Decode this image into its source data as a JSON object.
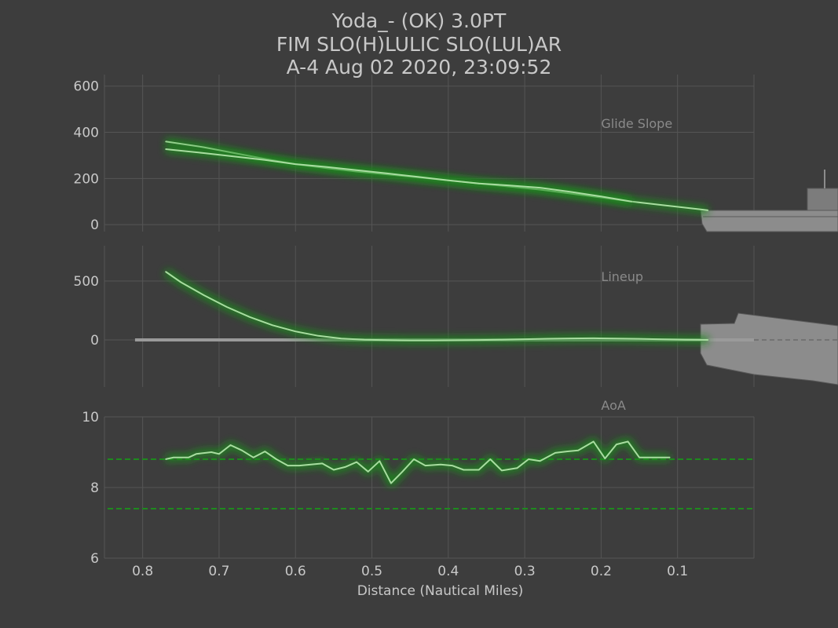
{
  "title_lines": [
    "Yoda_- (OK) 3.0PT",
    "FIM  SLO(H)LULIC SLO(LUL)AR",
    "A-4 Aug 02 2020, 23:09:52"
  ],
  "colors": {
    "background": "#3d3d3d",
    "grid": "#555555",
    "axis_text": "#c8c8c8",
    "panel_label": "#8a8a8a",
    "line": "#a8dca0",
    "glow": "#1f8a1f",
    "aoa_bounds": "#1e8a1e",
    "centerline": "#9a9a9a",
    "ship": "#8c8c8c"
  },
  "chart_data": [
    {
      "type": "line",
      "panel": "Glide Slope",
      "label": "Glide Slope",
      "x_axis": "reversed",
      "xlim": [
        0.85,
        0.0
      ],
      "ylim": [
        -30,
        650
      ],
      "yticks": [
        0,
        200,
        400,
        600
      ],
      "grid": true,
      "series": [
        {
          "x": [
            0.77,
            0.72,
            0.68,
            0.64,
            0.6,
            0.56,
            0.52,
            0.48,
            0.44,
            0.4,
            0.36,
            0.32,
            0.28,
            0.24,
            0.2,
            0.16,
            0.12,
            0.08,
            0.06
          ],
          "y": [
            360,
            335,
            310,
            285,
            262,
            245,
            230,
            218,
            205,
            192,
            178,
            165,
            152,
            135,
            118,
            100,
            85,
            70,
            62
          ]
        },
        {
          "x": [
            0.77,
            0.72,
            0.68,
            0.64,
            0.6,
            0.56,
            0.52,
            0.48,
            0.44,
            0.4,
            0.36,
            0.32,
            0.28,
            0.24,
            0.2,
            0.16
          ],
          "y": [
            327,
            310,
            295,
            280,
            262,
            250,
            236,
            222,
            207,
            192,
            178,
            170,
            160,
            142,
            122,
            100
          ]
        }
      ],
      "decoration": "carrier-side-view"
    },
    {
      "type": "line",
      "panel": "Lineup",
      "label": "Lineup",
      "x_axis": "reversed",
      "xlim": [
        0.85,
        0.0
      ],
      "ylim": [
        -400,
        800
      ],
      "yticks": [
        0,
        500
      ],
      "grid": true,
      "reference": {
        "x_start": 0.81,
        "x_end": 0.0,
        "y": 0
      },
      "series": [
        {
          "x": [
            0.77,
            0.75,
            0.72,
            0.69,
            0.66,
            0.63,
            0.6,
            0.57,
            0.54,
            0.51,
            0.48,
            0.45,
            0.42,
            0.39,
            0.36,
            0.33,
            0.3,
            0.27,
            0.24,
            0.21,
            0.18,
            0.15,
            0.12,
            0.09,
            0.06
          ],
          "y": [
            580,
            490,
            380,
            280,
            195,
            125,
            72,
            35,
            12,
            2,
            -2,
            -4,
            -4,
            -3,
            -1,
            2,
            6,
            10,
            13,
            14,
            12,
            9,
            5,
            2,
            0
          ]
        }
      ],
      "decoration": "carrier-top-view"
    },
    {
      "type": "line",
      "panel": "AoA",
      "label": "AoA",
      "x_axis": "reversed",
      "xlim": [
        0.85,
        0.0
      ],
      "ylim": [
        6,
        10
      ],
      "yticks": [
        6,
        8,
        10
      ],
      "xticks": [
        0.8,
        0.7,
        0.6,
        0.5,
        0.4,
        0.3,
        0.2,
        0.1
      ],
      "xlabel": "Distance (Nautical Miles)",
      "grid": true,
      "bounds": [
        8.8,
        7.4
      ],
      "series": [
        {
          "x": [
            0.77,
            0.76,
            0.74,
            0.73,
            0.71,
            0.7,
            0.685,
            0.67,
            0.655,
            0.64,
            0.625,
            0.61,
            0.595,
            0.58,
            0.565,
            0.55,
            0.535,
            0.52,
            0.505,
            0.49,
            0.475,
            0.46,
            0.445,
            0.43,
            0.41,
            0.395,
            0.38,
            0.36,
            0.345,
            0.33,
            0.31,
            0.295,
            0.28,
            0.26,
            0.245,
            0.23,
            0.21,
            0.195,
            0.18,
            0.165,
            0.15,
            0.13,
            0.11
          ],
          "y": [
            8.8,
            8.85,
            8.85,
            8.95,
            9.0,
            8.95,
            9.2,
            9.05,
            8.85,
            9.02,
            8.8,
            8.62,
            8.62,
            8.65,
            8.68,
            8.5,
            8.58,
            8.72,
            8.45,
            8.75,
            8.12,
            8.45,
            8.8,
            8.62,
            8.65,
            8.62,
            8.5,
            8.5,
            8.8,
            8.48,
            8.55,
            8.8,
            8.75,
            8.98,
            9.02,
            9.05,
            9.3,
            8.82,
            9.22,
            9.3,
            8.85,
            8.85,
            8.85
          ]
        }
      ]
    }
  ]
}
